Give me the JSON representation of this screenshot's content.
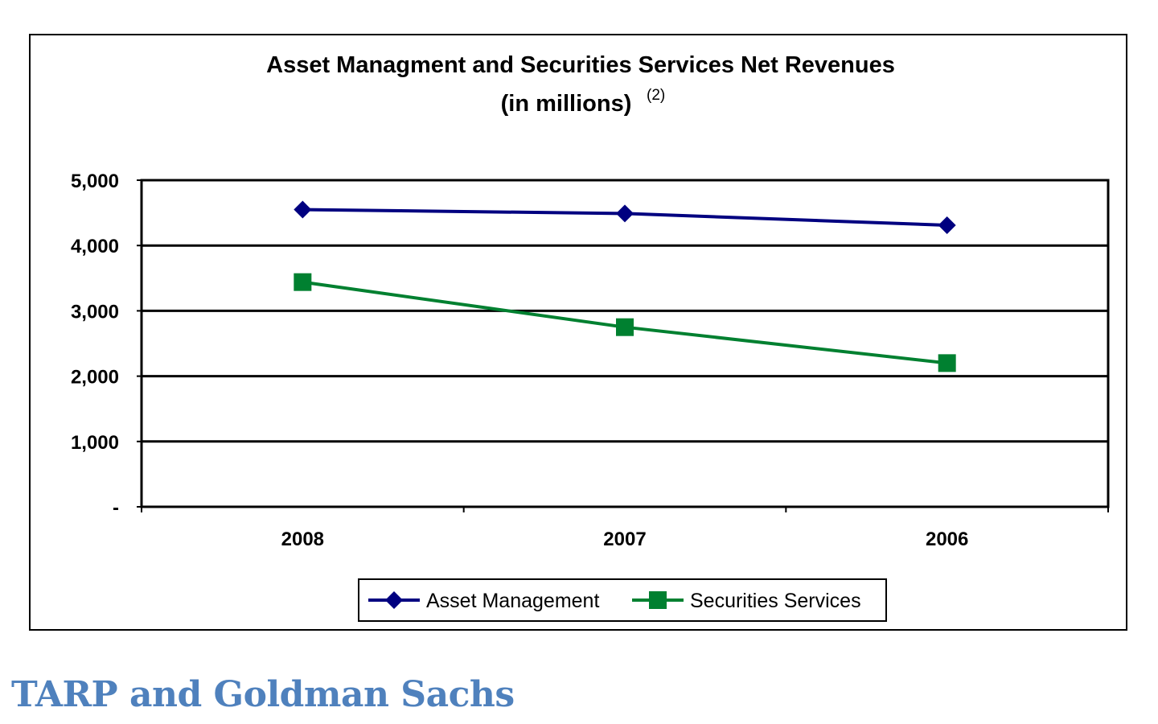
{
  "chart_data": {
    "type": "line",
    "title": "Asset Managment and Securities Services Net Revenues",
    "subtitle": "(in millions)",
    "subtitle_note": "(2)",
    "xlabel": "",
    "ylabel": "",
    "categories": [
      "2008",
      "2007",
      "2006"
    ],
    "yticks": [
      {
        "value": 0,
        "label": "-"
      },
      {
        "value": 1000,
        "label": "1,000"
      },
      {
        "value": 2000,
        "label": "2,000"
      },
      {
        "value": 3000,
        "label": "3,000"
      },
      {
        "value": 4000,
        "label": "4,000"
      },
      {
        "value": 5000,
        "label": "5,000"
      }
    ],
    "ylim": [
      0,
      5000
    ],
    "grid": true,
    "legend_position": "bottom",
    "series": [
      {
        "name": "Asset Management",
        "values": [
          4550,
          4490,
          4310
        ],
        "color": "#000080",
        "marker": "diamond"
      },
      {
        "name": "Securities Services",
        "values": [
          3440,
          2750,
          2200
        ],
        "color": "#008030",
        "marker": "square"
      }
    ]
  },
  "heading": {
    "text": "TARP and Goldman Sachs",
    "color": "#4f81bd"
  }
}
